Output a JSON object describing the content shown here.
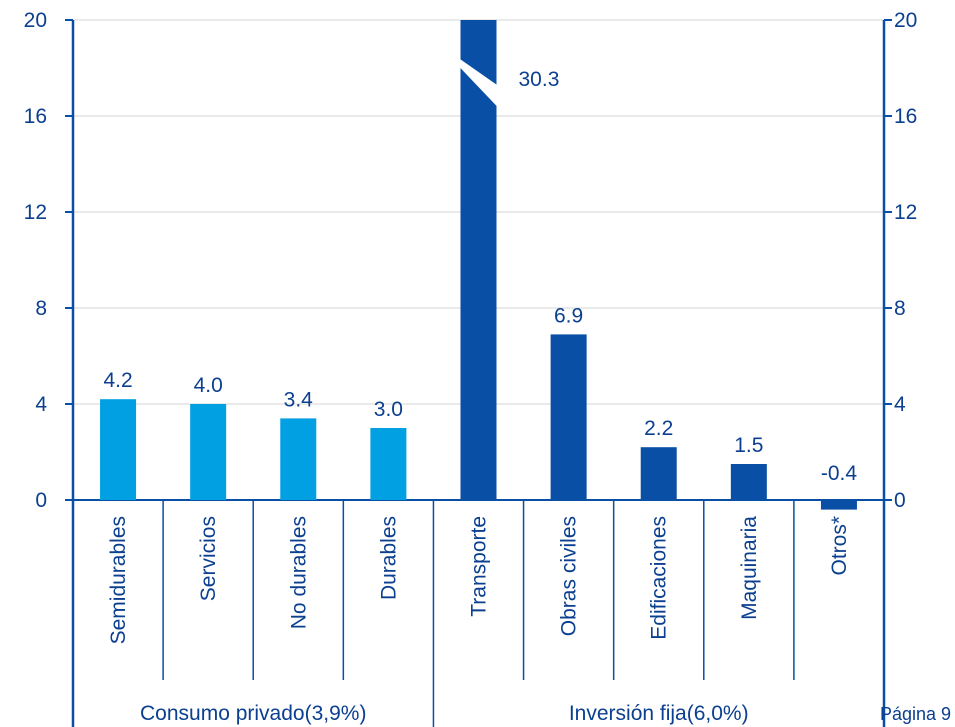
{
  "chart_data": {
    "type": "bar",
    "categories": [
      "Semidurables",
      "Servicios",
      "No durables",
      "Durables",
      "Transporte",
      "Obras civiles",
      "Edificaciones",
      "Maquinaria",
      "Otros*"
    ],
    "values": [
      4.2,
      4.0,
      3.4,
      3.0,
      30.3,
      6.9,
      2.2,
      1.5,
      -0.4
    ],
    "value_labels": [
      "4.2",
      "4.0",
      "3.4",
      "3.0",
      "30.3",
      "6.9",
      "2.2",
      "1.5",
      "-0.4"
    ],
    "groups": [
      {
        "label": "Consumo privado(3,9%)",
        "start": 0,
        "end": 3,
        "color": "#00a0e3"
      },
      {
        "label": "Inversión fija(6,0%)",
        "start": 4,
        "end": 8,
        "color": "#0a4fa6"
      }
    ],
    "ylim": [
      0,
      20
    ],
    "yticks": [
      "0",
      "4",
      "8",
      "12",
      "16",
      "20"
    ],
    "secondary_y_axis": true,
    "truncated_bar_index": 4,
    "grid": true,
    "title": "",
    "xlabel": "",
    "ylabel": ""
  },
  "footer": {
    "page_label": "Página 9"
  },
  "colors": {
    "axis": "#0a4fa6",
    "text": "#0b3f8f",
    "grid": "#c8c8c8"
  }
}
